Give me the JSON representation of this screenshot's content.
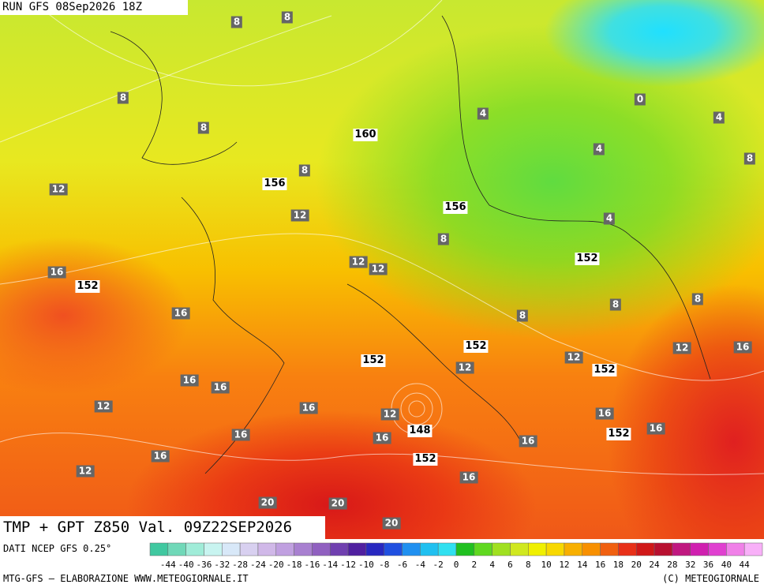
{
  "header": {
    "run": "RUN GFS 08Sep2026 18Z"
  },
  "caption": "TMP + GPT Z850 Val. 09Z22SEP2026",
  "map": {
    "temperature_labels": [
      8,
      8,
      8,
      8,
      4,
      0,
      4,
      4,
      8,
      12,
      8,
      12,
      4,
      8,
      12,
      12,
      16,
      8,
      8,
      16,
      8,
      12,
      16,
      12,
      12,
      16,
      16,
      12,
      16,
      12,
      16,
      16,
      16,
      16,
      16,
      16,
      12,
      16,
      20,
      20,
      20
    ],
    "height_labels": [
      160,
      156,
      156,
      152,
      152,
      152,
      152,
      152,
      148,
      152,
      152
    ]
  },
  "legend": {
    "labels": [
      -44,
      -40,
      -36,
      -32,
      -28,
      -24,
      -20,
      -18,
      -16,
      -14,
      -12,
      -10,
      -8,
      -6,
      -4,
      -2,
      0,
      2,
      4,
      6,
      8,
      10,
      12,
      14,
      16,
      18,
      20,
      24,
      28,
      32,
      36,
      40,
      44
    ],
    "colors": [
      "#40c8a0",
      "#70d8b8",
      "#a0ecd8",
      "#c8f4f0",
      "#d8e8f8",
      "#d8d0f0",
      "#d0b8e8",
      "#c0a0e0",
      "#a880d0",
      "#9060c0",
      "#7040b0",
      "#5020a0",
      "#2828c0",
      "#2050e0",
      "#2090f0",
      "#20c0f0",
      "#30e0f0",
      "#20c020",
      "#60d820",
      "#a0e020",
      "#d0e820",
      "#f0f000",
      "#f8d800",
      "#f8b000",
      "#f89000",
      "#f06010",
      "#e83018",
      "#d01818",
      "#b81030",
      "#c01880",
      "#d020b0",
      "#e040d0",
      "#f080e8",
      "#f8b0f8"
    ]
  },
  "footer": {
    "source": "DATI NCEP GFS 0.25°",
    "credit": "MTG-GFS – ELABORAZIONE WWW.METEOGIORNALE.IT",
    "copyright": "(C) METEOGIORNALE"
  }
}
